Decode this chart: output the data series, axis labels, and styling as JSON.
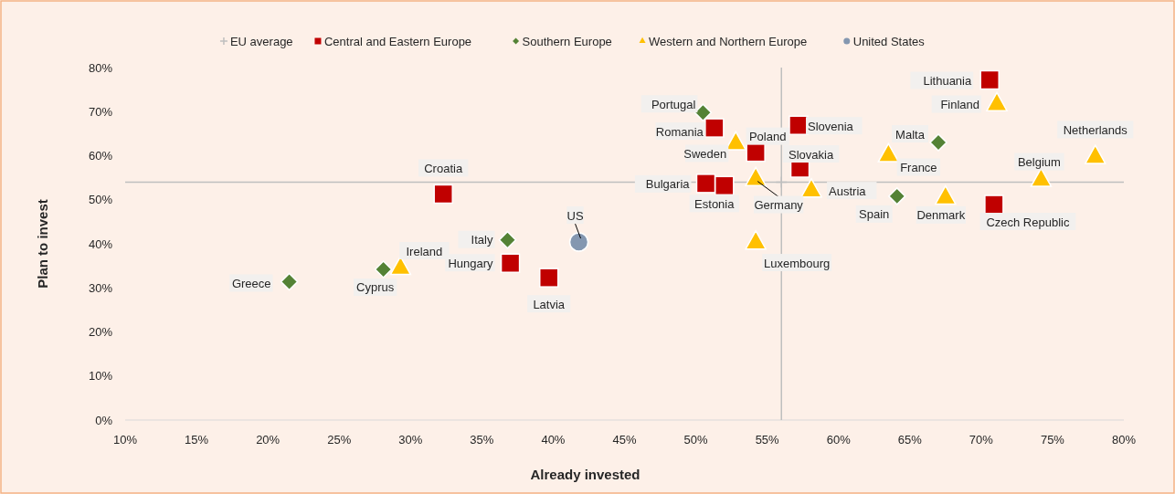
{
  "chart_data": {
    "type": "scatter",
    "xlabel": "Already invested",
    "ylabel": "Plan to invest",
    "xlim": [
      10,
      80
    ],
    "ylim": [
      0,
      80
    ],
    "xticks": [
      {
        "value": 10,
        "label": "10%"
      },
      {
        "value": 15,
        "label": "15%"
      },
      {
        "value": 20,
        "label": "20%"
      },
      {
        "value": 25,
        "label": "25%"
      },
      {
        "value": 30,
        "label": "30%"
      },
      {
        "value": 35,
        "label": "35%"
      },
      {
        "value": 40,
        "label": "40%"
      },
      {
        "value": 45,
        "label": "45%"
      },
      {
        "value": 50,
        "label": "50%"
      },
      {
        "value": 55,
        "label": "55%"
      },
      {
        "value": 60,
        "label": "60%"
      },
      {
        "value": 65,
        "label": "65%"
      },
      {
        "value": 70,
        "label": "70%"
      },
      {
        "value": 75,
        "label": "75%"
      },
      {
        "value": 80,
        "label": "80%"
      }
    ],
    "yticks": [
      {
        "value": 0,
        "label": "0%"
      },
      {
        "value": 10,
        "label": "10%"
      },
      {
        "value": 20,
        "label": "20%"
      },
      {
        "value": 30,
        "label": "30%"
      },
      {
        "value": 40,
        "label": "40%"
      },
      {
        "value": 50,
        "label": "50%"
      },
      {
        "value": 60,
        "label": "60%"
      },
      {
        "value": 70,
        "label": "70%"
      },
      {
        "value": 80,
        "label": "80%"
      }
    ],
    "grid": false,
    "legend": "top",
    "series": [
      {
        "name": "EU average",
        "color": "#bfbfbf",
        "marker": "cross",
        "x": [
          56
        ],
        "values": [
          54
        ],
        "xerrors": [
          [
            10,
            80
          ]
        ],
        "errors": [
          [
            0,
            80
          ]
        ]
      },
      {
        "name": "Central and Eastern Europe",
        "color": "#c00000",
        "marker": "square",
        "x": [
          32.3,
          37.0,
          39.7,
          51.3,
          54.2,
          57.2,
          57.3,
          50.7,
          52.0,
          70.6,
          70.9
        ],
        "values": [
          51.3,
          35.6,
          32.3,
          66.3,
          60.8,
          66.9,
          57.2,
          53.7,
          53.2,
          77.2,
          48.9
        ],
        "value_labels": [
          "Croatia",
          "Hungary",
          "Latvia",
          "Romania",
          "Poland",
          "Slovenia",
          "Slovakia",
          "Bulgaria",
          "Estonia",
          "Lithuania",
          "Czech Republic"
        ]
      },
      {
        "name": "Southern Europe",
        "color": "#548235",
        "marker": "diamond",
        "x": [
          21.5,
          28.1,
          36.8,
          50.5,
          67.0,
          64.1
        ],
        "values": [
          31.4,
          34.2,
          40.9,
          69.8,
          63.0,
          50.8
        ],
        "value_labels": [
          "Greece",
          "Cyprus",
          "Italy",
          "Portugal",
          "Malta",
          "Spain"
        ]
      },
      {
        "name": "Western and Northern Europe",
        "color": "#ffc000",
        "marker": "triangle",
        "x": [
          29.3,
          52.8,
          54.2,
          58.1,
          54.2,
          71.1,
          63.5,
          78.0,
          74.2,
          67.5
        ],
        "values": [
          34.4,
          62.7,
          54.6,
          52.0,
          40.2,
          71.6,
          60.0,
          59.6,
          54.4,
          50.4
        ],
        "value_labels": [
          "Ireland",
          "Sweden",
          "Germany",
          "Austria",
          "Luxembourg",
          "Finland",
          "France",
          "Netherlands",
          "Belgium",
          "Denmark"
        ]
      },
      {
        "name": "United States",
        "color": "#8497b0",
        "marker": "circle",
        "x": [
          41.8
        ],
        "values": [
          40.4
        ],
        "value_labels": [
          "US"
        ]
      }
    ]
  }
}
